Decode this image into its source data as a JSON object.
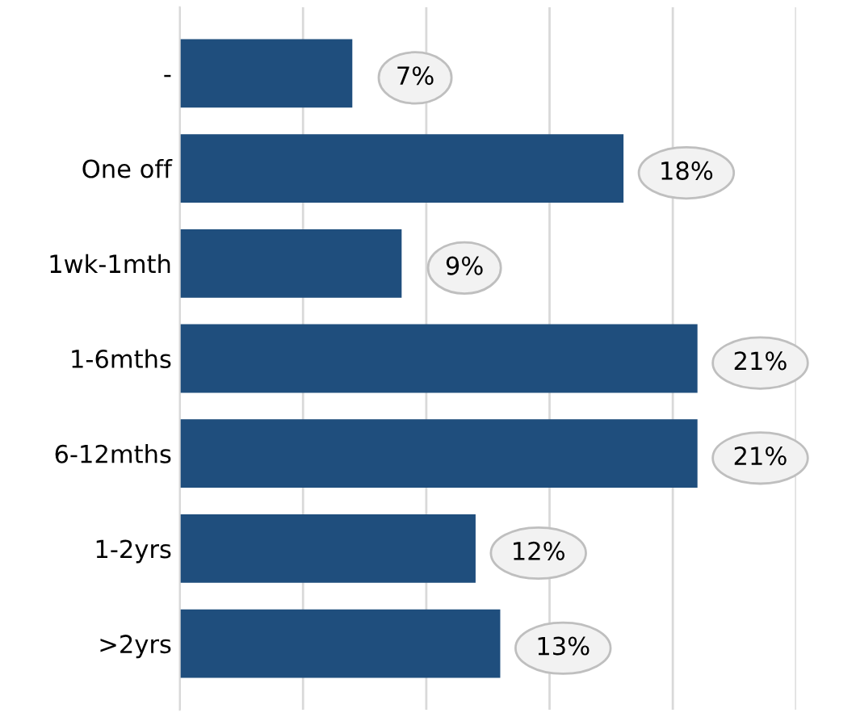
{
  "chart_data": {
    "type": "bar",
    "orientation": "horizontal",
    "categories": [
      "-",
      "One off",
      "1wk-1mth",
      "1-6mths",
      "6-12mths",
      "1-2yrs",
      ">2yrs"
    ],
    "values": [
      7,
      18,
      9,
      21,
      21,
      12,
      13
    ],
    "value_labels": [
      "7%",
      "18%",
      "9%",
      "21%",
      "21%",
      "12%",
      "13%"
    ],
    "color": "#1f4e7d",
    "xlim": [
      0,
      25
    ],
    "xticks": [
      {
        "value": 0,
        "label": null
      },
      {
        "value": 5,
        "label": null
      },
      {
        "value": 10,
        "label": null
      },
      {
        "value": 15,
        "label": null
      },
      {
        "value": 20,
        "label": null
      },
      {
        "value": 25,
        "label": null
      }
    ],
    "grid": "x",
    "legend": false
  }
}
